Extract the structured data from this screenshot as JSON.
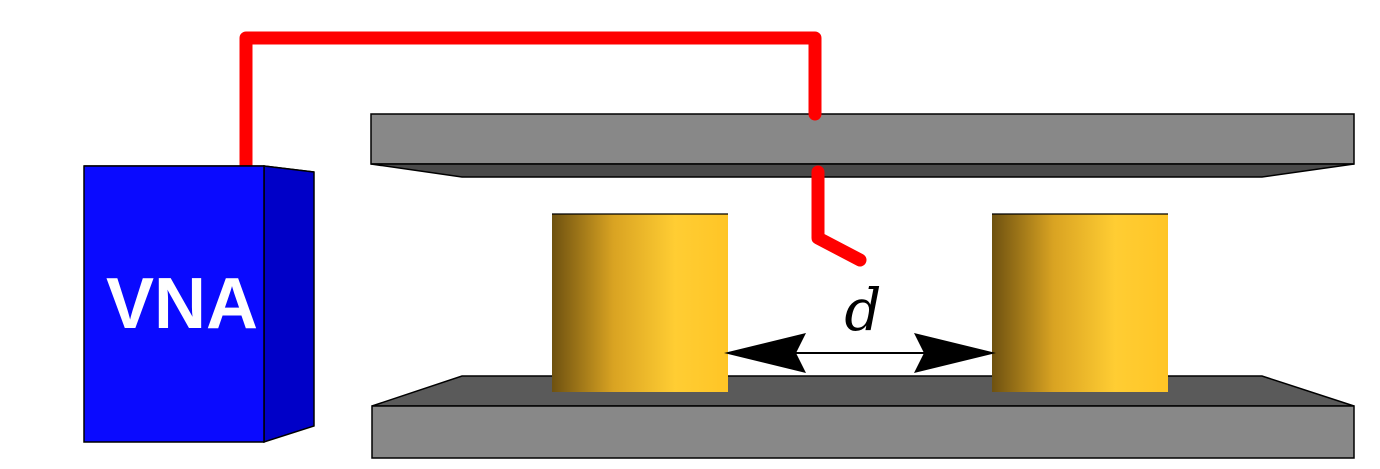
{
  "vna": {
    "label": "VNA",
    "color": "#0a0aff"
  },
  "separation": {
    "label": "d"
  },
  "components": {
    "cable_color": "#ff0000",
    "plate_color": "#888888",
    "cylinder_color": "#ffc82a"
  }
}
